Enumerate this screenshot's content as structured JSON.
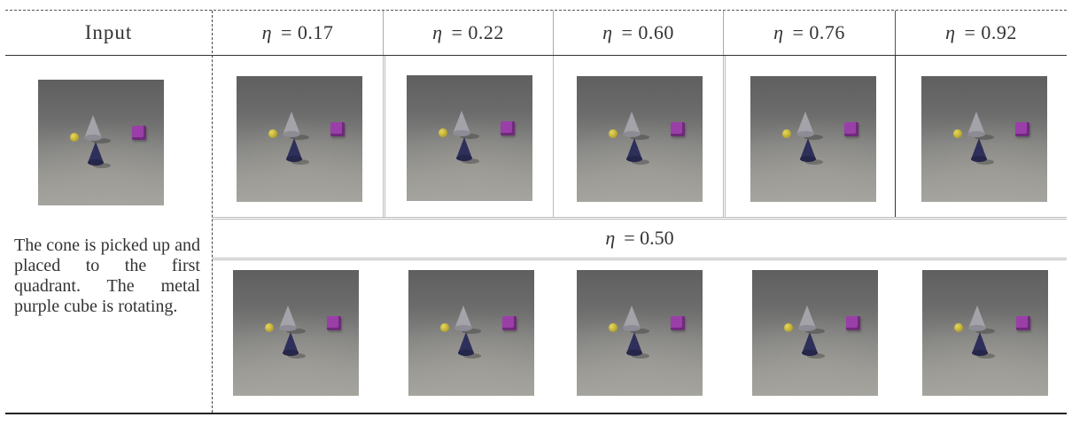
{
  "header": {
    "input_label": "Input",
    "eta_symbol": "η",
    "columns": [
      {
        "label": "= 0.17"
      },
      {
        "label": "= 0.22"
      },
      {
        "label": "= 0.60"
      },
      {
        "label": "= 0.76"
      },
      {
        "label": "= 0.92"
      }
    ]
  },
  "eta_row": {
    "label": "= 0.50"
  },
  "input_description": "The cone is picked up and placed to the first quadrant. The metal purple cube is rotating."
}
